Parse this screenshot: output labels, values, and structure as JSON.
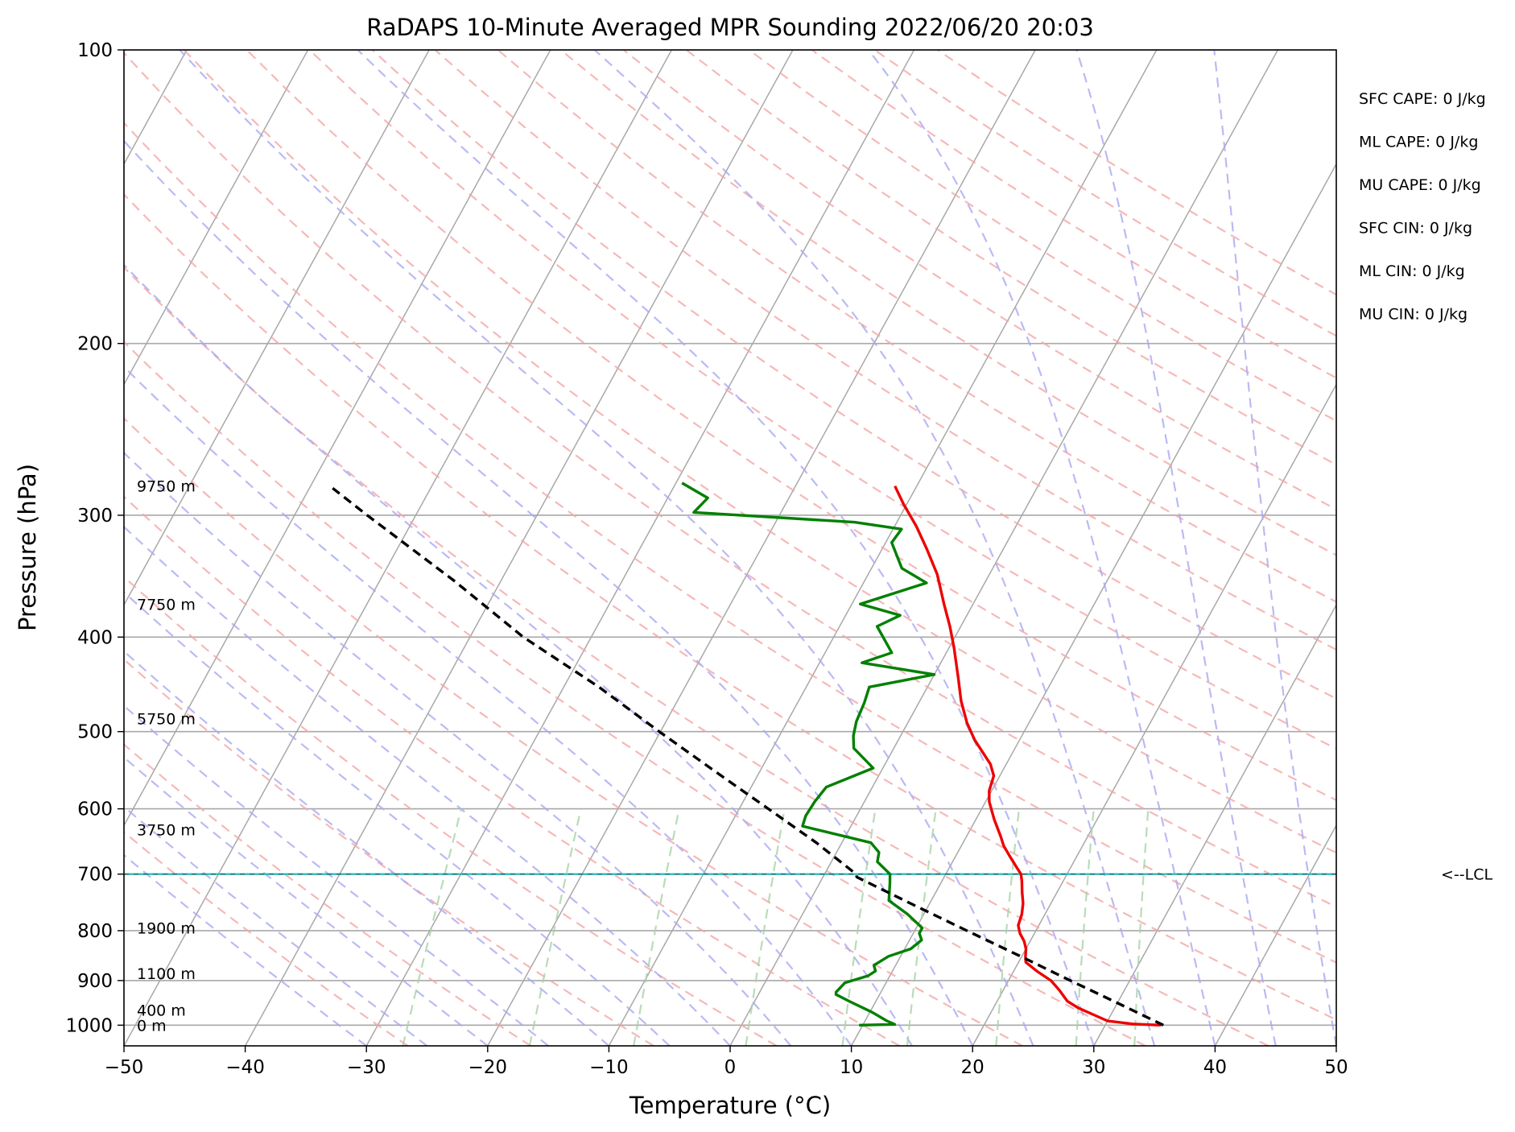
{
  "chart_data": {
    "type": "line",
    "subtype": "skew-t log-p sounding",
    "title": "RaDAPS 10-Minute Averaged MPR Sounding 2022/06/20 20:03",
    "xlabel": "Temperature (°C)",
    "ylabel": "Pressure (hPa)",
    "xlim": [
      -50,
      50
    ],
    "ylim": [
      1050,
      100
    ],
    "y_scale": "log",
    "grid": true,
    "x_ticks": [
      "−50",
      "−40",
      "−30",
      "−20",
      "−10",
      "0",
      "10",
      "20",
      "30",
      "40",
      "50"
    ],
    "y_ticks": [
      "100",
      "200",
      "300",
      "400",
      "500",
      "600",
      "700",
      "800",
      "900",
      "1000"
    ],
    "height_labels": [
      {
        "p": 280,
        "text": "9750 m"
      },
      {
        "p": 370,
        "text": "7750 m"
      },
      {
        "p": 485,
        "text": "5750 m"
      },
      {
        "p": 630,
        "text": "3750 m"
      },
      {
        "p": 795,
        "text": "1900 m"
      },
      {
        "p": 885,
        "text": "1100 m"
      },
      {
        "p": 965,
        "text": "400 m"
      },
      {
        "p": 1000,
        "text": "0 m"
      }
    ],
    "indices": [
      "SFC CAPE: 0 J/kg",
      "ML CAPE: 0 J/kg",
      "MU CAPE: 0 J/kg",
      "SFC CIN: 0 J/kg",
      "ML CIN: 0 J/kg",
      "MU CIN: 0 J/kg"
    ],
    "lcl": {
      "p": 700,
      "text": "<--LCL"
    },
    "colors": {
      "temperature": "#ee0000",
      "dewpoint": "#008000",
      "parcel": "#000000",
      "isotherm": "#a8a8a8",
      "dry_adiabat": "#f4a6a6",
      "moist_adiabat": "#a9a9f2",
      "mixing_ratio": "#a6d3a6",
      "lcl": "#19b8b8"
    },
    "series": [
      {
        "key": "temperature",
        "points": [
          [
            1000,
            34.6
          ],
          [
            997,
            32.2
          ],
          [
            990,
            30.0
          ],
          [
            975,
            28.5
          ],
          [
            960,
            27.0
          ],
          [
            945,
            25.8
          ],
          [
            920,
            24.6
          ],
          [
            900,
            23.5
          ],
          [
            880,
            21.9
          ],
          [
            862,
            20.6
          ],
          [
            850,
            20.3
          ],
          [
            835,
            20.0
          ],
          [
            820,
            19.5
          ],
          [
            805,
            18.8
          ],
          [
            790,
            18.3
          ],
          [
            770,
            18.1
          ],
          [
            750,
            17.7
          ],
          [
            730,
            17.1
          ],
          [
            712,
            16.6
          ],
          [
            700,
            16.2
          ],
          [
            690,
            15.6
          ],
          [
            670,
            14.4
          ],
          [
            655,
            13.5
          ],
          [
            640,
            12.8
          ],
          [
            615,
            11.5
          ],
          [
            590,
            10.3
          ],
          [
            575,
            9.8
          ],
          [
            555,
            9.5
          ],
          [
            540,
            8.7
          ],
          [
            510,
            6.3
          ],
          [
            490,
            4.9
          ],
          [
            465,
            3.4
          ],
          [
            440,
            2.1
          ],
          [
            410,
            0.4
          ],
          [
            390,
            -0.9
          ],
          [
            370,
            -2.4
          ],
          [
            345,
            -4.3
          ],
          [
            325,
            -6.3
          ],
          [
            308,
            -8.2
          ],
          [
            292,
            -10.3
          ],
          [
            280,
            -11.8
          ]
        ]
      },
      {
        "key": "dewpoint",
        "points": [
          [
            1000,
            9.7
          ],
          [
            998,
            12.6
          ],
          [
            990,
            11.8
          ],
          [
            970,
            10.2
          ],
          [
            945,
            7.8
          ],
          [
            930,
            6.4
          ],
          [
            925,
            6.3
          ],
          [
            905,
            6.6
          ],
          [
            890,
            8.2
          ],
          [
            880,
            8.6
          ],
          [
            868,
            8.2
          ],
          [
            850,
            9.0
          ],
          [
            835,
            10.5
          ],
          [
            818,
            11.0
          ],
          [
            805,
            10.5
          ],
          [
            795,
            10.5
          ],
          [
            770,
            8.7
          ],
          [
            745,
            6.5
          ],
          [
            715,
            5.8
          ],
          [
            700,
            5.4
          ],
          [
            680,
            3.8
          ],
          [
            665,
            3.5
          ],
          [
            650,
            2.4
          ],
          [
            625,
            -4.0
          ],
          [
            610,
            -4.2
          ],
          [
            590,
            -4.1
          ],
          [
            570,
            -3.8
          ],
          [
            545,
            -0.8
          ],
          [
            520,
            -3.3
          ],
          [
            505,
            -3.9
          ],
          [
            488,
            -4.3
          ],
          [
            467,
            -4.5
          ],
          [
            450,
            -4.8
          ],
          [
            437,
            0.0
          ],
          [
            425,
            -6.5
          ],
          [
            415,
            -4.5
          ],
          [
            390,
            -6.9
          ],
          [
            380,
            -5.5
          ],
          [
            370,
            -9.3
          ],
          [
            352,
            -4.8
          ],
          [
            340,
            -7.5
          ],
          [
            320,
            -9.5
          ],
          [
            310,
            -9.3
          ],
          [
            305,
            -13.5
          ],
          [
            298,
            -27.2
          ],
          [
            288,
            -26.7
          ],
          [
            278,
            -29.5
          ]
        ]
      },
      {
        "key": "parcel",
        "points": [
          [
            1000,
            34.8
          ],
          [
            950,
            30.1
          ],
          [
            900,
            25.1
          ],
          [
            850,
            19.9
          ],
          [
            800,
            14.3
          ],
          [
            750,
            8.4
          ],
          [
            705,
            2.8
          ],
          [
            700,
            2.6
          ],
          [
            650,
            -2.1
          ],
          [
            600,
            -7.6
          ],
          [
            550,
            -13.6
          ],
          [
            500,
            -20.1
          ],
          [
            450,
            -27.1
          ],
          [
            400,
            -35.6
          ],
          [
            350,
            -43.9
          ],
          [
            300,
            -54.0
          ],
          [
            280,
            -58.4
          ]
        ]
      }
    ]
  }
}
